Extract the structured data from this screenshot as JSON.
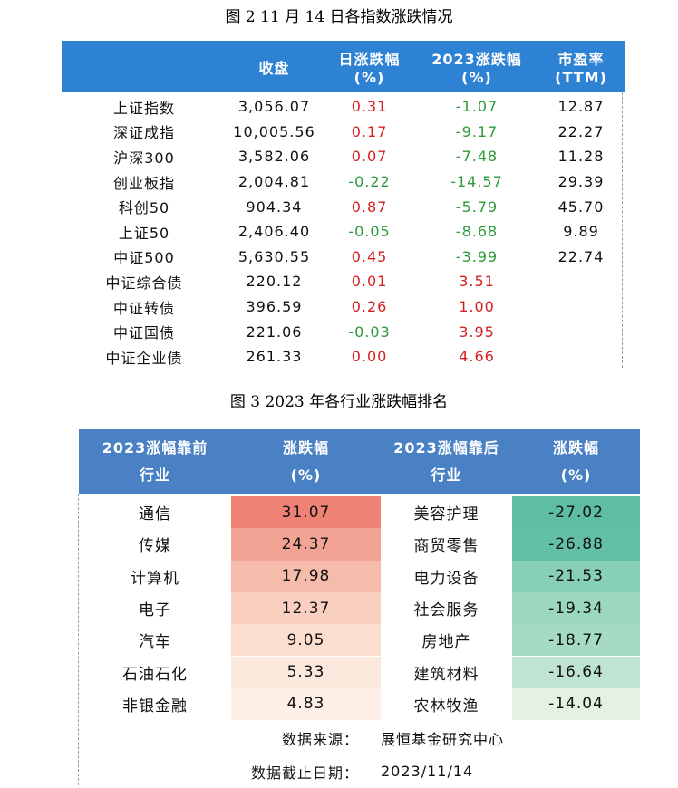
{
  "figure2": {
    "caption": "图 2   11 月 14 日各指数涨跌情况",
    "up_color": "#d42020",
    "down_color": "#2e9a3a",
    "header_color": "#2e82d4",
    "table": {
      "header": [
        [
          "收盘"
        ],
        [
          "日涨跌幅",
          "(%)"
        ],
        [
          "2023涨跌幅",
          "(%)"
        ],
        [
          "市盈率",
          "(TTM)"
        ]
      ],
      "rows": [
        [
          "上证指数",
          "3,056.07",
          "0.31",
          "-1.07",
          "12.87"
        ],
        [
          "深证成指",
          "10,005.56",
          "0.17",
          "-9.17",
          "22.27"
        ],
        [
          "沪深300",
          "3,582.06",
          "0.07",
          "-7.48",
          "11.28"
        ],
        [
          "创业板指",
          "2,004.81",
          "-0.22",
          "-14.57",
          "29.39"
        ],
        [
          "科创50",
          "904.34",
          "0.87",
          "-5.79",
          "45.70"
        ],
        [
          "上证50",
          "2,406.40",
          "-0.05",
          "-8.68",
          "9.89"
        ],
        [
          "中证500",
          "5,630.55",
          "0.45",
          "-3.99",
          "22.74"
        ],
        [
          "中证综合债",
          "220.12",
          "0.01",
          "3.51"
        ],
        [
          "中证转债",
          "396.59",
          "0.26",
          "1.00"
        ],
        [
          "中证国债",
          "221.06",
          "-0.03",
          "3.95"
        ],
        [
          "中证企业债",
          "261.33",
          "0.00",
          "4.66"
        ]
      ]
    }
  },
  "figure3": {
    "caption": "图 3   2023 年各行业涨跌幅排名",
    "header_color": "#4a80c4",
    "table": {
      "header": [
        [
          "2023涨幅靠前",
          "行业"
        ],
        [
          "涨跌幅",
          "(%)"
        ],
        [
          "2023涨幅靠后",
          "行业"
        ],
        [
          "涨跌幅",
          "(%)"
        ]
      ],
      "rows": [
        [
          "通信",
          "31.07",
          "美容护理",
          "-27.02"
        ],
        [
          "传媒",
          "24.37",
          "商贸零售",
          "-26.88"
        ],
        [
          "计算机",
          "17.98",
          "电力设备",
          "-21.53"
        ],
        [
          "电子",
          "12.37",
          "社会服务",
          "-19.34"
        ],
        [
          "汽车",
          "9.05",
          "房地产",
          "-18.77"
        ],
        [
          "石油石化",
          "5.33",
          "建筑材料",
          "-16.64"
        ],
        [
          "非银金融",
          "4.83",
          "农林牧渔",
          "-14.04"
        ]
      ],
      "value_colors": [
        [
          "#ef8274",
          "#5ebea4"
        ],
        [
          "#f3a394",
          "#63c0a7"
        ],
        [
          "#f6bcab",
          "#87cfb5"
        ],
        [
          "#f9cfbf",
          "#9cd7c0"
        ],
        [
          "#fbdece",
          "#a5dbc5"
        ],
        [
          "#fce9de",
          "#bfe4d2"
        ],
        [
          "#fdefe5",
          "#e6f2e1"
        ]
      ],
      "footer": [
        [
          "数据来源：",
          "展恒基金研究中心"
        ],
        [
          "数据截止日期：",
          "2023/11/14"
        ]
      ]
    }
  }
}
